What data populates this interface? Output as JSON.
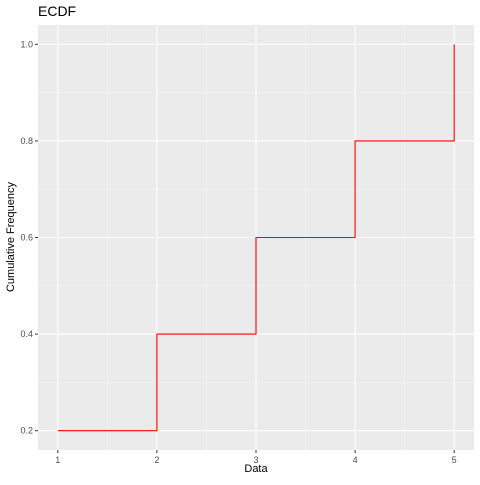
{
  "chart_data": {
    "type": "line",
    "title": "ECDF",
    "xlabel": "Data",
    "ylabel": "Cumulative Frequency",
    "xlim": [
      0.8,
      5.2
    ],
    "ylim": [
      0.16,
      1.04
    ],
    "x_ticks": [
      1,
      2,
      3,
      4,
      5
    ],
    "y_ticks": [
      0.2,
      0.4,
      0.6,
      0.8,
      1.0
    ],
    "x_tick_labels": [
      "1",
      "2",
      "3",
      "4",
      "5"
    ],
    "y_tick_labels": [
      "0.2",
      "0.4",
      "0.6",
      "0.8",
      "1.0"
    ],
    "grid": true,
    "legend": "none",
    "series": [
      {
        "step": "post",
        "color": "#ff0000",
        "x": [
          1,
          2,
          3,
          4,
          5
        ],
        "y": [
          0.2,
          0.4,
          0.6,
          0.8,
          1.0
        ]
      }
    ],
    "colors": {
      "panel_background": "#ebebeb",
      "grid_major": "#ffffff",
      "tick_text": "#4d4d4d",
      "axis_title": "#000000"
    }
  }
}
